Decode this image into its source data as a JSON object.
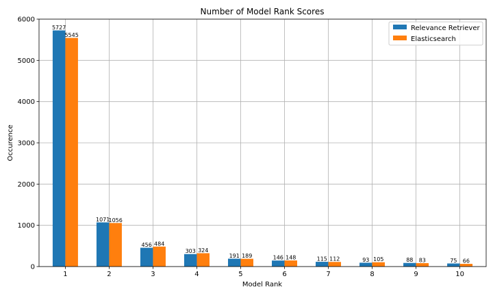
{
  "chart_data": {
    "type": "bar",
    "title": "Number of Model Rank Scores",
    "xlabel": "Model Rank",
    "ylabel": "Occurence",
    "categories": [
      "1",
      "2",
      "3",
      "4",
      "5",
      "6",
      "7",
      "8",
      "9",
      "10"
    ],
    "series": [
      {
        "name": "Relevance Retriever",
        "color": "#1f77b4",
        "values": [
          5727,
          1071,
          456,
          303,
          191,
          146,
          115,
          93,
          88,
          75
        ]
      },
      {
        "name": "Elasticsearch",
        "color": "#ff7f0e",
        "values": [
          5545,
          1056,
          484,
          324,
          189,
          148,
          112,
          105,
          83,
          66
        ]
      }
    ],
    "ylim": [
      0,
      6000
    ],
    "yticks": [
      0,
      1000,
      2000,
      3000,
      4000,
      5000,
      6000
    ],
    "grid": true,
    "legend_position": "top-right"
  }
}
